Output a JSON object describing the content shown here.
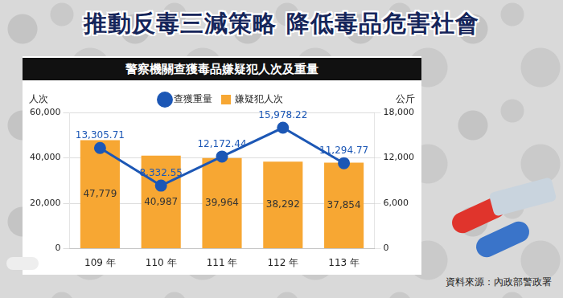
{
  "title": "推動反毒三減策略 降低毒品危害社會",
  "source": "資料來源：內政部警政署",
  "chart_data": {
    "type": "bar",
    "title": "警察機關查獲毒品嫌疑犯人次及重量",
    "categories": [
      "109 年",
      "110 年",
      "111 年",
      "112 年",
      "113 年"
    ],
    "series": [
      {
        "name": "嫌疑犯人次",
        "type": "bar",
        "color": "#f7a733",
        "values": [
          47779,
          40987,
          39964,
          38292,
          37854
        ],
        "value_labels": [
          "47,779",
          "40,987",
          "39,964",
          "38,292",
          "37,854"
        ]
      },
      {
        "name": "查獲重量",
        "type": "line",
        "color": "#1c57b5",
        "marker": "circle",
        "axis": "y2",
        "values": [
          13305.71,
          8332.55,
          12172.44,
          15978.22,
          11294.77
        ],
        "value_labels": [
          "13,305.71",
          "8,332.55",
          "12,172.44",
          "15,978.22",
          "11,294.77"
        ]
      }
    ],
    "y_label": "人次",
    "y2_label": "公斤",
    "ylim": [
      0,
      60000
    ],
    "yticks": [
      0,
      {
        "value": 20000,
        "label": "20,000"
      },
      {
        "value": 40000,
        "label": "40,000"
      },
      {
        "value": 60000,
        "label": "60,000"
      }
    ],
    "y2lim": [
      0,
      18000
    ],
    "y2ticks": [
      0,
      {
        "value": 6000,
        "label": "6,000"
      },
      {
        "value": 12000,
        "label": "12,000"
      },
      {
        "value": 18000,
        "label": "18,000"
      }
    ],
    "grid": true,
    "legend": "top",
    "data_labels": true
  }
}
